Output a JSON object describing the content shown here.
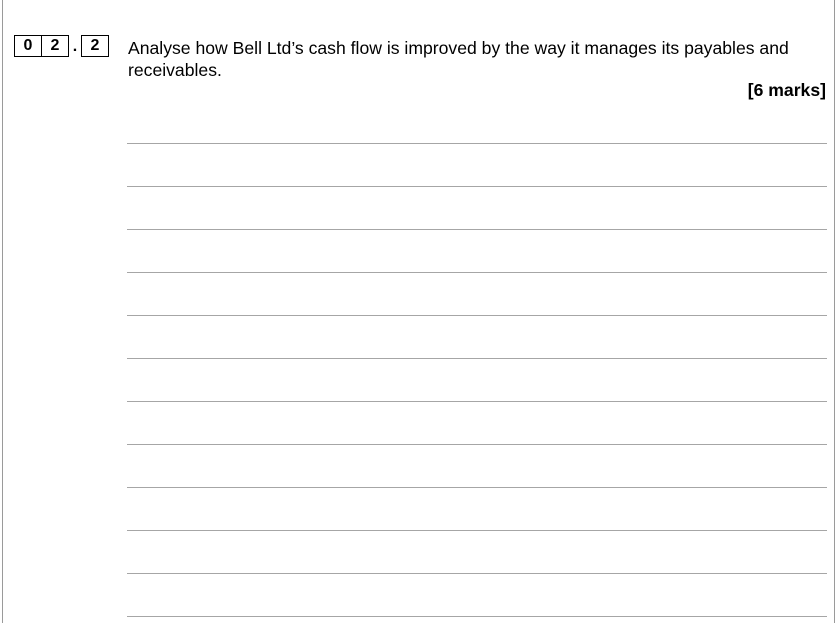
{
  "question": {
    "number_digits": [
      "0",
      "2",
      "2"
    ],
    "separator": ".",
    "text": "Analyse how Bell Ltd’s cash flow is improved by the way it manages its payables and receivables.",
    "marks": "[6 marks]"
  },
  "answer_area": {
    "line_count": 12
  }
}
